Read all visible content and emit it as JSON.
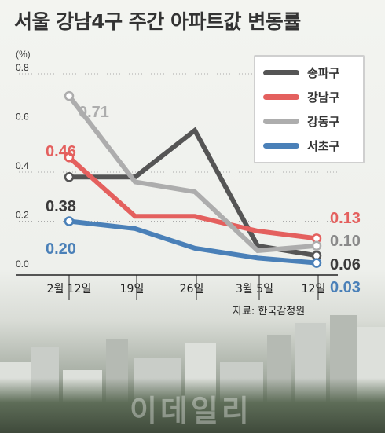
{
  "title": "서울 강남4구 주간 아파트값 변동률",
  "unit_label": "(%)",
  "source": "자료: 한국감정원",
  "watermark": "이데일리",
  "colors": {
    "songpa": "#555555",
    "gangnam": "#e4605e",
    "gangdong": "#adadad",
    "seocho": "#4a80b8",
    "axis": "#222222",
    "grid": "#aaaaaa"
  },
  "chart_data": {
    "type": "line",
    "x": [
      "2월 12일",
      "19일",
      "26일",
      "3월 5일",
      "12일"
    ],
    "ylim": [
      0,
      0.8
    ],
    "yticks": [
      "0.0",
      "0.2",
      "0.4",
      "0.6",
      "0.8"
    ],
    "grid": true,
    "legend_position": "top-right",
    "series": [
      {
        "name": "송파구",
        "color": "#555555",
        "values": [
          0.38,
          0.38,
          0.57,
          0.1,
          0.06
        ]
      },
      {
        "name": "강남구",
        "color": "#e4605e",
        "values": [
          0.46,
          0.22,
          0.22,
          0.16,
          0.13
        ]
      },
      {
        "name": "강동구",
        "color": "#adadad",
        "values": [
          0.71,
          0.36,
          0.32,
          0.08,
          0.1
        ]
      },
      {
        "name": "서초구",
        "color": "#4a80b8",
        "values": [
          0.2,
          0.17,
          0.09,
          0.05,
          0.03
        ]
      }
    ],
    "start_labels": [
      "0.38",
      "0.46",
      "0.71",
      "0.20"
    ],
    "end_labels": [
      "0.06",
      "0.13",
      "0.10",
      "0.03"
    ]
  }
}
